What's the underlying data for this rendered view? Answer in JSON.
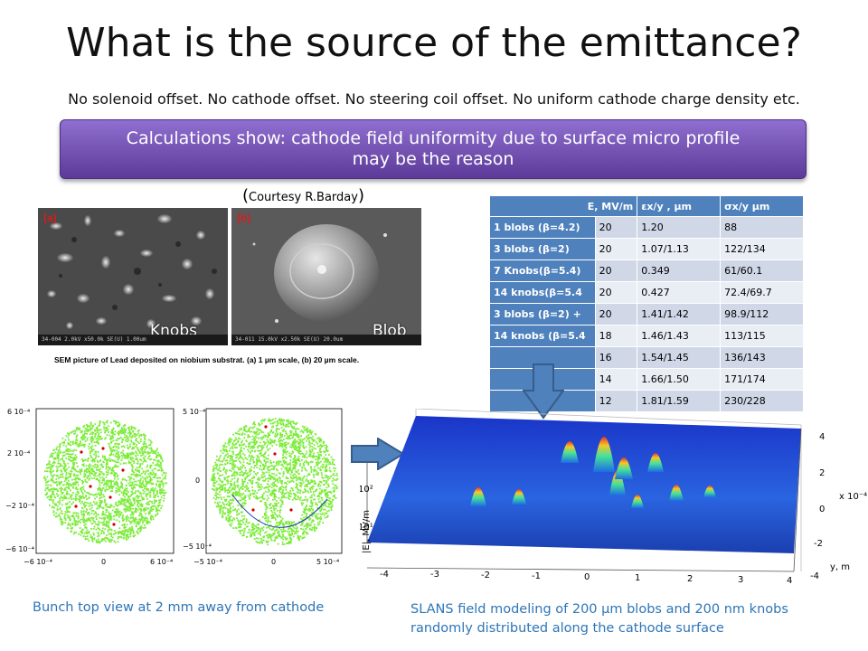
{
  "slide": {
    "title": "What is the source of the emittance?",
    "subtitle": "No solenoid offset. No cathode offset. No steering coil offset. No uniform cathode charge density etc.",
    "callout_line1": "Calculations show: cathode field uniformity due to surface micro profile",
    "callout_line2": "may be the reason",
    "courtesy_open": "(",
    "courtesy_text": "Courtesy R.Barday",
    "courtesy_close": ")"
  },
  "sem": {
    "panel_a_label": "(a)",
    "panel_b_label": "(b)",
    "panel_a_overlay": "Knobs",
    "panel_b_overlay": "Blob",
    "panel_a_meta": "34-004 2.0kV x50.0k SE(U)                1.00um",
    "panel_b_meta": "34-011 15.0kV x2.50k SE(U)               20.0um",
    "caption": "SEM picture of Lead deposited on niobium substrat. (a) 1 µm scale, (b) 20 µm scale."
  },
  "table": {
    "headers": [
      "E, MV/m",
      "εx/y , µm",
      "σx/y µm"
    ],
    "rows": [
      {
        "label": "1 blobs (β=4.2)",
        "e": "20",
        "eps": "1.20",
        "sigma": "88"
      },
      {
        "label": "3 blobs (β=2)",
        "e": "20",
        "eps": "1.07/1.13",
        "sigma": "122/134"
      },
      {
        "label": "7  Knobs(β=5.4)",
        "e": "20",
        "eps": "0.349",
        "sigma": "61/60.1"
      },
      {
        "label": "14 knobs(β=5.4",
        "e": "20",
        "eps": "0.427",
        "sigma": "72.4/69.7"
      },
      {
        "label": "3 blobs  (β=2) +",
        "e": "20",
        "eps": "1.41/1.42",
        "sigma": "98.9/112"
      },
      {
        "label": "14 knobs (β=5.4",
        "e": "18",
        "eps": "1.46/1.43",
        "sigma": "113/115"
      },
      {
        "label": "",
        "e": "16",
        "eps": "1.54/1.45",
        "sigma": "136/143"
      },
      {
        "label": "",
        "e": "14",
        "eps": "1.66/1.50",
        "sigma": "171/174"
      },
      {
        "label": "",
        "e": "12",
        "eps": "1.81/1.59",
        "sigma": "230/228"
      }
    ]
  },
  "plots": {
    "plot1_yticks": [
      "6 10⁻⁴",
      "2 10⁻⁴",
      "−2 10⁻⁴",
      "−6 10⁻⁴"
    ],
    "plot1_xticks": [
      "−6 10⁻⁴",
      "0",
      "6 10⁻⁴"
    ],
    "plot2_yticks": [
      "5 10⁻⁴",
      "0",
      "−5 10⁻⁴"
    ],
    "plot2_xticks": [
      "−5 10⁻⁴",
      "0",
      "5 10⁻⁴"
    ]
  },
  "surface": {
    "z_label": "|E|, MV/m",
    "z_tick_2": "10²",
    "z_tick_1": "10¹",
    "y_label": "y, m",
    "scale_label": "x 10⁻⁴",
    "x_ticks": [
      "-4",
      "-3",
      "-2",
      "-1",
      "0",
      "1",
      "2",
      "3",
      "4"
    ],
    "y_ticks": [
      "4",
      "2",
      "0",
      "-2",
      "-4"
    ]
  },
  "captions": {
    "left": "Bunch top view at 2 mm away from cathode",
    "right": "SLANS field modeling of 200 µm blobs and 200 nm knobs randomly distributed along the cathode surface"
  },
  "colors": {
    "callout": "#7a57bd",
    "table_header": "#4f81bd",
    "arrow": "#4f81bd",
    "caption": "#2e75b6",
    "particles": "#7cec3a"
  }
}
